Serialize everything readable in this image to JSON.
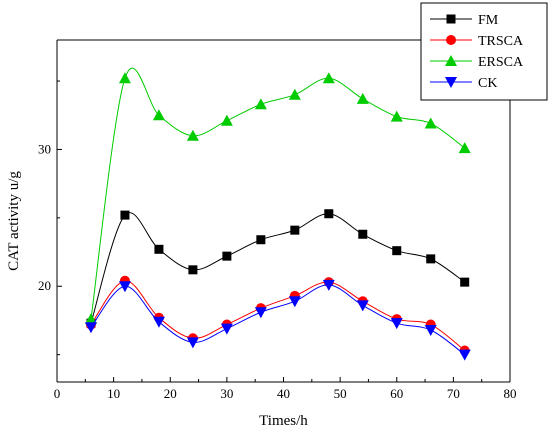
{
  "chart_data": {
    "type": "line",
    "xlabel": "Times/h",
    "ylabel": "CAT activity u/g",
    "xlim": [
      0,
      80
    ],
    "ylim": [
      13,
      38
    ],
    "x_ticks": [
      0,
      10,
      20,
      30,
      40,
      50,
      60,
      70,
      80
    ],
    "y_ticks": [
      20,
      30
    ],
    "grid": false,
    "legend_position": "top-right",
    "x": [
      6,
      12,
      18,
      24,
      30,
      36,
      42,
      48,
      54,
      60,
      66,
      72
    ],
    "series": [
      {
        "name": "FM",
        "color": "#000000",
        "marker": "square",
        "values": [
          17.3,
          25.2,
          22.7,
          21.2,
          22.2,
          23.4,
          24.1,
          25.3,
          23.8,
          22.6,
          22.0,
          20.3
        ]
      },
      {
        "name": "TRSCA",
        "color": "#ff0000",
        "marker": "circle",
        "values": [
          17.2,
          20.4,
          17.7,
          16.2,
          17.2,
          18.4,
          19.3,
          20.3,
          18.9,
          17.6,
          17.2,
          15.3
        ]
      },
      {
        "name": "ERSCA",
        "color": "#00cc00",
        "marker": "triangle-up",
        "values": [
          17.6,
          35.2,
          32.5,
          31.0,
          32.1,
          33.3,
          34.0,
          35.2,
          33.7,
          32.4,
          31.9,
          30.1
        ]
      },
      {
        "name": "CK",
        "color": "#0000ff",
        "marker": "triangle-down",
        "values": [
          17.0,
          20.0,
          17.4,
          15.9,
          16.9,
          18.1,
          18.9,
          20.1,
          18.6,
          17.3,
          16.8,
          15.0
        ]
      }
    ]
  }
}
